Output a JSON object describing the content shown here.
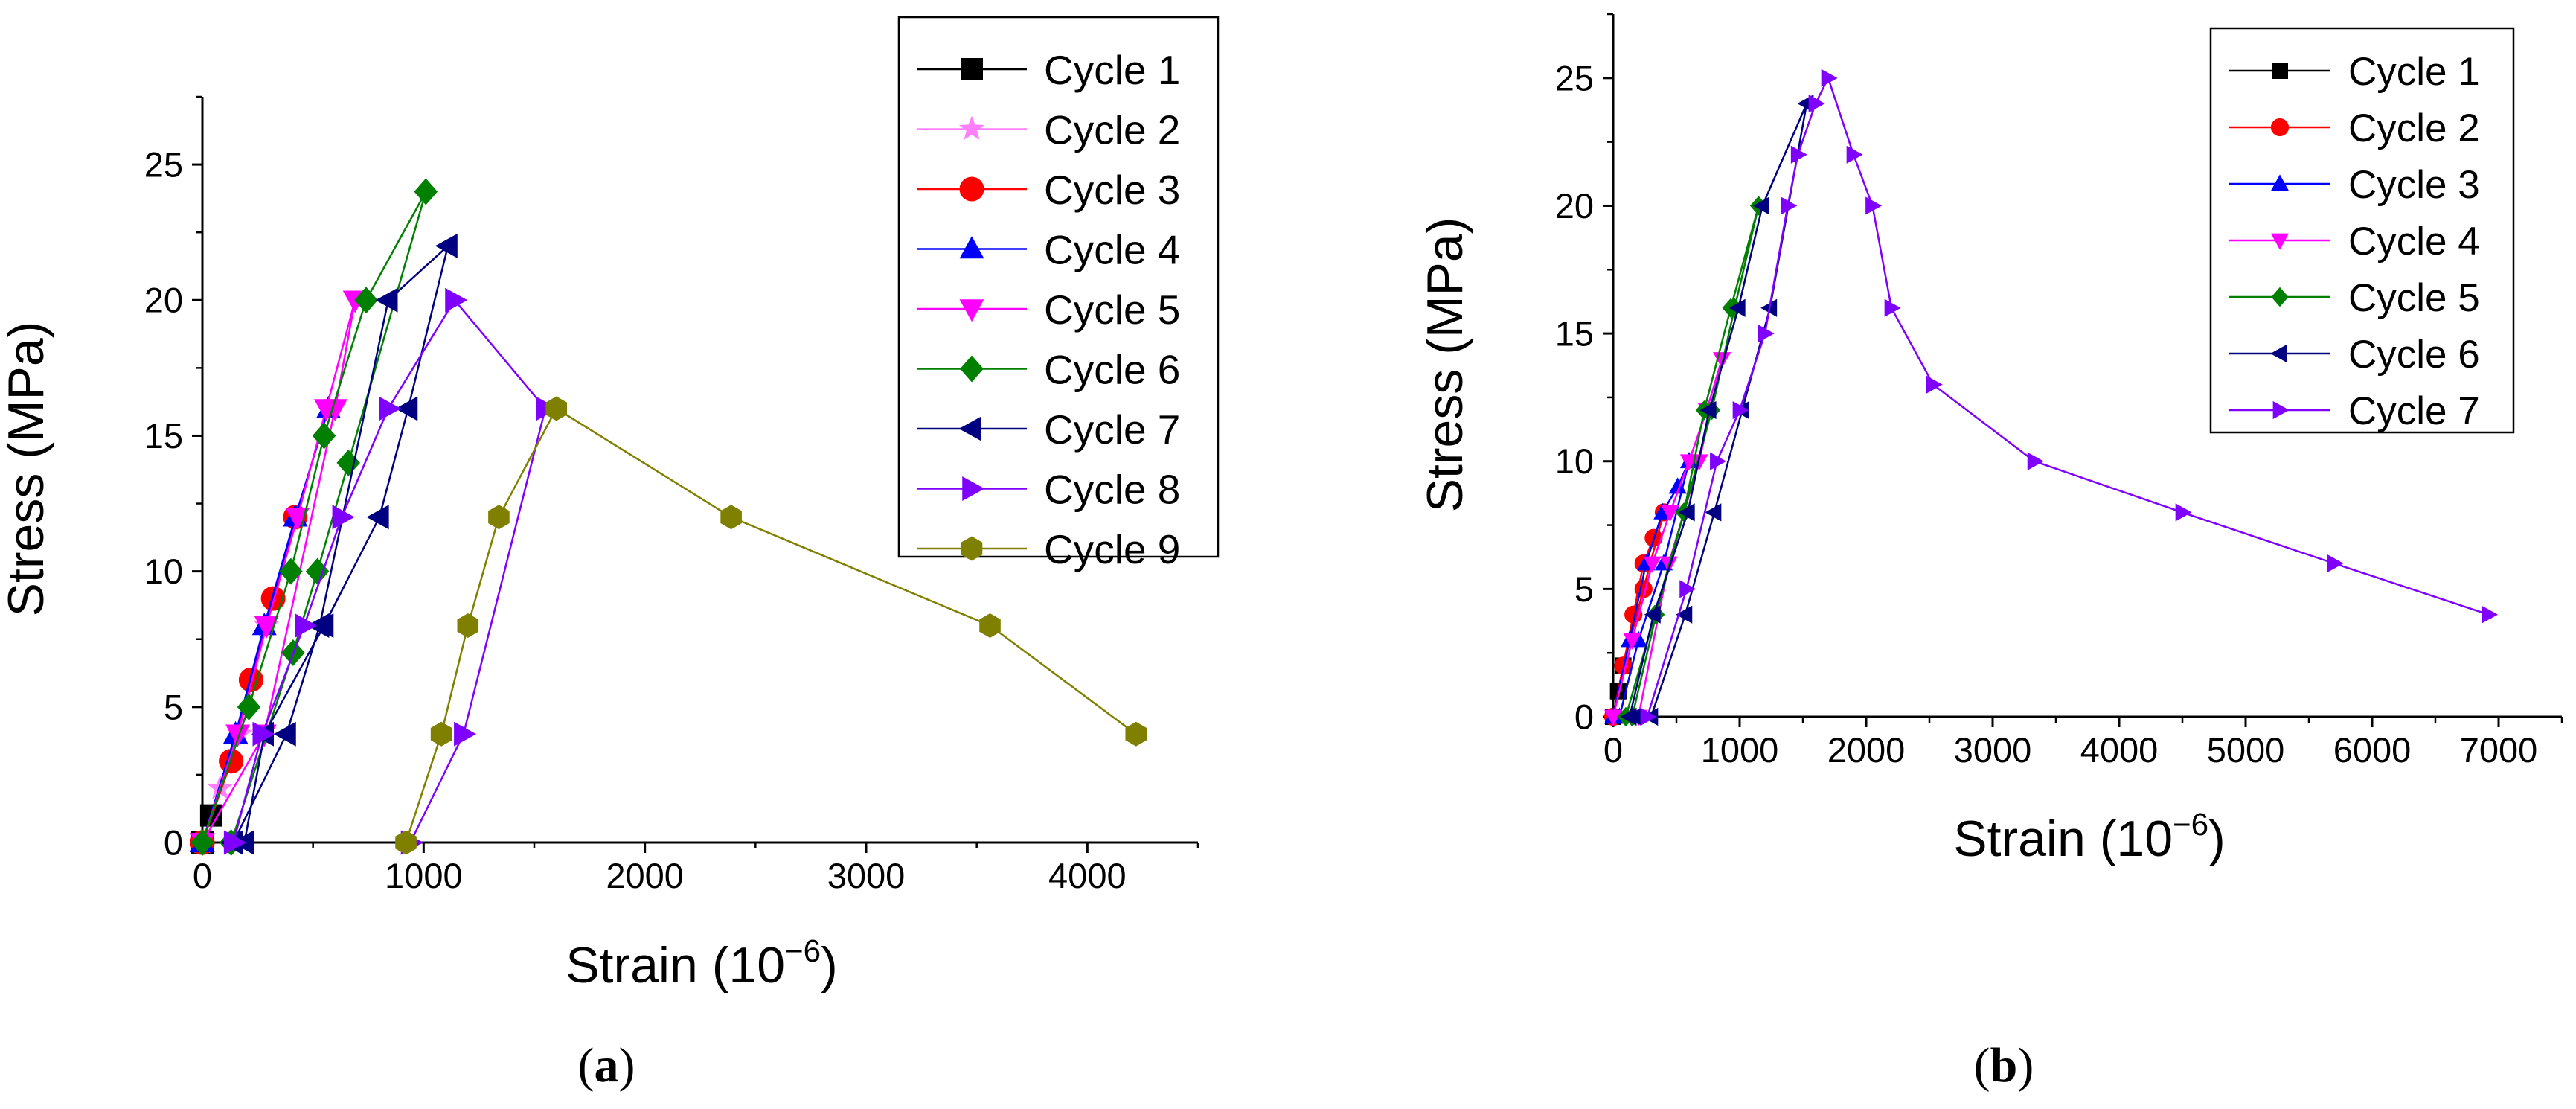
{
  "figure": {
    "panels": [
      {
        "caption_prefix": "(",
        "caption_letter": "a",
        "caption_suffix": ")"
      },
      {
        "caption_prefix": "(",
        "caption_letter": "b",
        "caption_suffix": ")"
      }
    ]
  },
  "chart_data": [
    {
      "type": "line",
      "title": "",
      "xlabel": "Strain (10",
      "xlabel_sup": "−6",
      "xlabel_close": ")",
      "ylabel": "Stress (MPa)",
      "xlim": [
        0,
        4500
      ],
      "ylim": [
        0,
        27.5
      ],
      "xticks": [
        0,
        1000,
        2000,
        3000,
        4000
      ],
      "yticks": [
        0,
        5,
        10,
        15,
        20,
        25
      ],
      "legend_position": "top-right",
      "series": [
        {
          "name": "Cycle 1",
          "color": "#000000",
          "marker": "square",
          "x": [
            0,
            40
          ],
          "y": [
            0,
            1
          ]
        },
        {
          "name": "Cycle 2",
          "color": "#ff80ff",
          "marker": "star",
          "x": [
            0,
            80,
            170,
            290,
            80,
            0
          ],
          "y": [
            0,
            2,
            4,
            8,
            2,
            0
          ]
        },
        {
          "name": "Cycle 3",
          "color": "#ff0000",
          "marker": "circle",
          "x": [
            0,
            130,
            220,
            320,
            420,
            220,
            130,
            0
          ],
          "y": [
            0,
            3,
            6,
            9,
            12,
            6,
            3,
            0
          ]
        },
        {
          "name": "Cycle 4",
          "color": "#0000ff",
          "marker": "triangle-up",
          "x": [
            0,
            150,
            280,
            420,
            570,
            420,
            150,
            0
          ],
          "y": [
            0,
            4,
            8,
            12,
            16,
            12,
            4,
            0
          ]
        },
        {
          "name": "Cycle 5",
          "color": "#ff00ff",
          "marker": "triangle-down",
          "x": [
            0,
            160,
            290,
            430,
            560,
            690,
            600,
            280,
            0
          ],
          "y": [
            0,
            4,
            8,
            12,
            16,
            20,
            16,
            4,
            0
          ]
        },
        {
          "name": "Cycle 6",
          "color": "#008000",
          "marker": "diamond",
          "x": [
            0,
            210,
            400,
            550,
            740,
            1010,
            660,
            520,
            410,
            130
          ],
          "y": [
            0,
            5,
            10,
            15,
            20,
            24,
            14,
            10,
            7,
            0
          ]
        },
        {
          "name": "Cycle 7",
          "color": "#000080",
          "marker": "triangle-left",
          "x": [
            140,
            380,
            530,
            840,
            1110,
            930,
            800,
            550,
            280,
            190
          ],
          "y": [
            0,
            4,
            8,
            20,
            22,
            16,
            12,
            8,
            4,
            0
          ]
        },
        {
          "name": "Cycle 8",
          "color": "#8000ff",
          "marker": "triangle-right",
          "x": [
            140,
            270,
            460,
            630,
            840,
            1140,
            1550,
            1180,
            940
          ],
          "y": [
            0,
            4,
            8,
            12,
            16,
            20,
            16,
            4,
            0
          ]
        },
        {
          "name": "Cycle 9",
          "color": "#808000",
          "marker": "hexagon",
          "x": [
            920,
            1080,
            1200,
            1340,
            1600,
            2390,
            3560,
            4220
          ],
          "y": [
            0,
            4,
            8,
            12,
            16,
            12,
            8,
            4
          ]
        }
      ]
    },
    {
      "type": "line",
      "title": "",
      "xlabel": "Strain (10",
      "xlabel_sup": "−6",
      "xlabel_close": ")",
      "ylabel": "Stress (MPa)",
      "xlim": [
        0,
        7500
      ],
      "ylim": [
        0,
        27.5
      ],
      "xticks": [
        0,
        1000,
        2000,
        3000,
        4000,
        5000,
        6000,
        7000
      ],
      "yticks": [
        0,
        5,
        10,
        15,
        20,
        25
      ],
      "legend_position": "top-right",
      "series": [
        {
          "name": "Cycle 1",
          "color": "#000000",
          "marker": "square",
          "x": [
            0,
            40,
            80,
            40,
            0
          ],
          "y": [
            0,
            1,
            2,
            1,
            0
          ]
        },
        {
          "name": "Cycle 2",
          "color": "#ff0000",
          "marker": "circle",
          "x": [
            0,
            80,
            160,
            240,
            320,
            400,
            240,
            80,
            0
          ],
          "y": [
            0,
            2,
            4,
            6,
            7,
            8,
            5,
            2,
            0
          ]
        },
        {
          "name": "Cycle 3",
          "color": "#0000ff",
          "marker": "triangle-up",
          "x": [
            0,
            130,
            260,
            390,
            510,
            600,
            400,
            200,
            50
          ],
          "y": [
            0,
            3,
            6,
            8,
            9,
            10,
            6,
            3,
            0
          ]
        },
        {
          "name": "Cycle 4",
          "color": "#ff00ff",
          "marker": "triangle-down",
          "x": [
            0,
            150,
            310,
            450,
            600,
            740,
            860,
            680,
            440,
            200
          ],
          "y": [
            0,
            3,
            6,
            8,
            10,
            12,
            14,
            10,
            6,
            0
          ]
        },
        {
          "name": "Cycle 5",
          "color": "#008000",
          "marker": "diamond",
          "x": [
            100,
            330,
            560,
            780,
            960,
            1150,
            930,
            720,
            560,
            340,
            150
          ],
          "y": [
            0,
            4,
            8,
            12,
            16,
            20,
            16,
            12,
            8,
            4,
            0
          ]
        },
        {
          "name": "Cycle 6",
          "color": "#000080",
          "marker": "triangle-left",
          "x": [
            130,
            320,
            590,
            760,
            990,
            1180,
            1530,
            1240,
            1020,
            800,
            570,
            300,
            170
          ],
          "y": [
            0,
            4,
            8,
            12,
            16,
            20,
            24,
            16,
            12,
            8,
            4,
            0,
            0
          ]
        },
        {
          "name": "Cycle 7",
          "color": "#8000ff",
          "marker": "triangle-right",
          "x": [
            270,
            580,
            820,
            1000,
            1200,
            1380,
            1460,
            1600,
            1700,
            1900,
            2050,
            2200,
            2530,
            3330,
            4500,
            5700,
            6920
          ],
          "y": [
            0,
            5,
            10,
            12,
            15,
            20,
            22,
            24,
            25,
            22,
            20,
            16,
            13,
            10,
            8,
            6,
            4
          ]
        }
      ]
    }
  ]
}
